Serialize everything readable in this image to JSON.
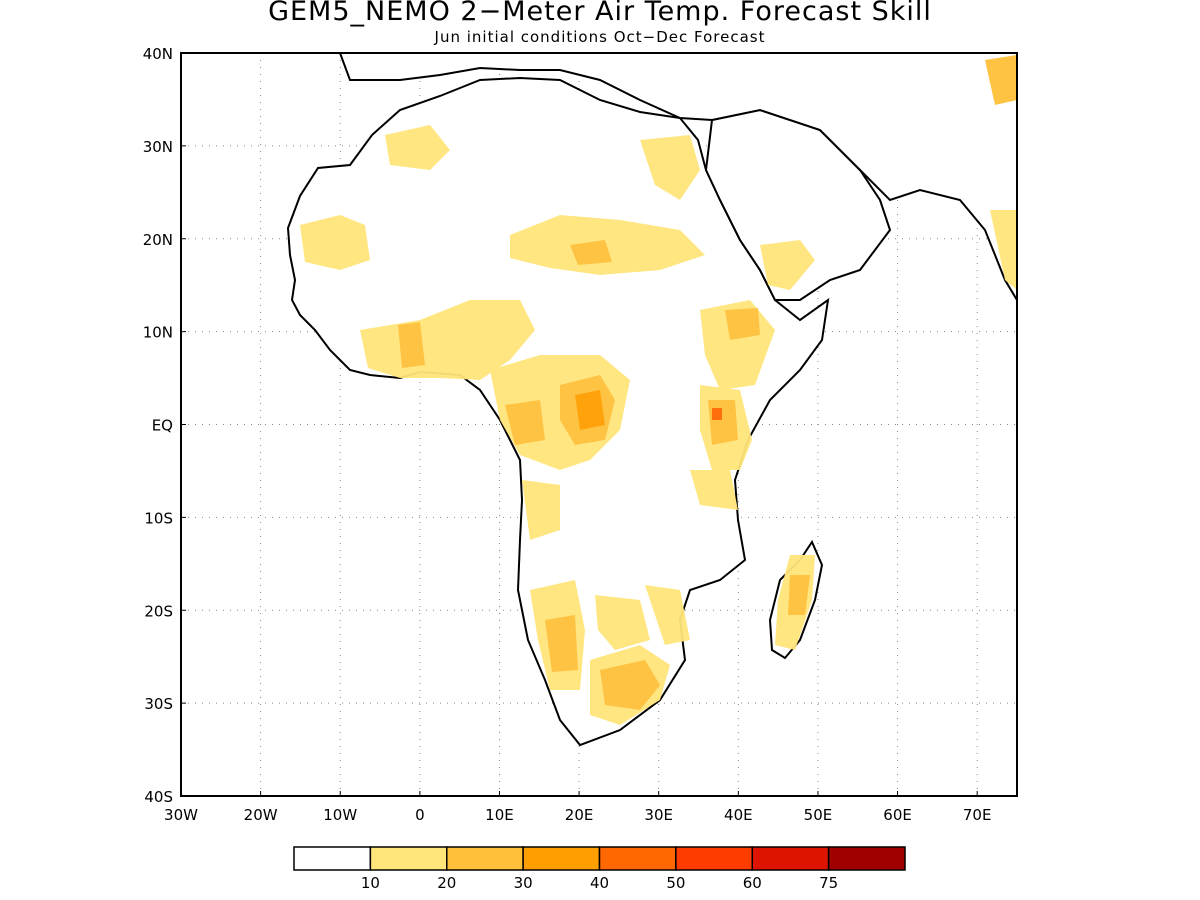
{
  "title": "GEM5_NEMO 2−Meter Air Temp. Forecast Skill",
  "subtitle": "Jun initial conditions  Oct−Dec Forecast",
  "map": {
    "lon_range": [
      -30,
      75
    ],
    "lat_range": [
      -40,
      40
    ],
    "lon_ticks": [
      "30W",
      "20W",
      "10W",
      "0",
      "10E",
      "20E",
      "30E",
      "40E",
      "50E",
      "60E",
      "70E"
    ],
    "lat_ticks": [
      "40N",
      "30N",
      "20N",
      "10N",
      "EQ",
      "10S",
      "20S",
      "30S",
      "40S"
    ],
    "grid": "dotted"
  },
  "colorbar": {
    "labels": [
      "10",
      "20",
      "30",
      "40",
      "50",
      "60",
      "75"
    ],
    "colors": [
      "#ffffff",
      "#ffe57a",
      "#ffc03a",
      "#ff9e00",
      "#ff6800",
      "#ff3c00",
      "#dd1500",
      "#a00000"
    ]
  }
}
